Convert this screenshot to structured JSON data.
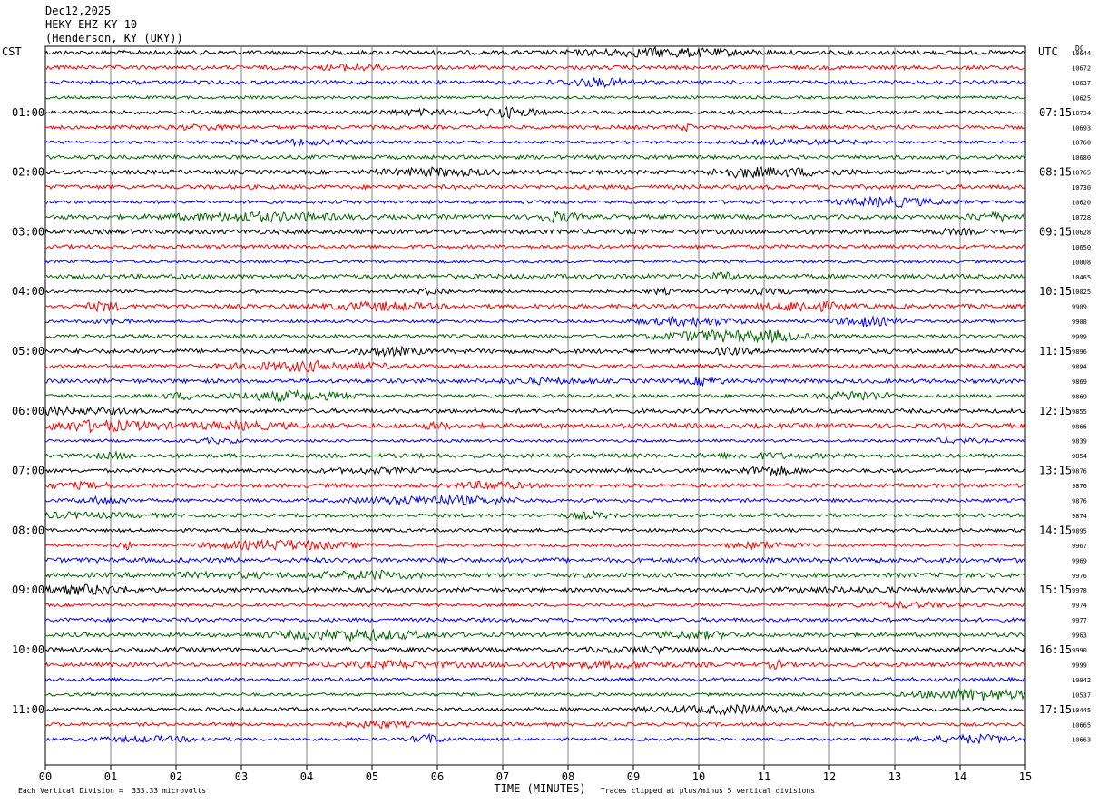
{
  "header": {
    "date": "Dec12,2025",
    "station": "HEKY EHZ KY 10",
    "location": "(Henderson, KY (UKY))"
  },
  "labels": {
    "left_zone": "CST",
    "right_zone": "UTC",
    "dc": "DC"
  },
  "footer": {
    "vertical_division": "Each Vertical Division =  333.33 microvolts",
    "clipping_note": "Traces clipped at plus/minus 5 vertical divisions"
  },
  "colors": {
    "trace_cycle": [
      "#000000",
      "#ff0000",
      "#0000ff",
      "#006400"
    ],
    "grid": "#808080"
  },
  "chart_data": {
    "type": "line",
    "title": "",
    "xlabel": "TIME (MINUTES)",
    "xlim": [
      0,
      15
    ],
    "x_ticks": [
      "00",
      "01",
      "02",
      "03",
      "04",
      "05",
      "06",
      "07",
      "08",
      "09",
      "10",
      "11",
      "12",
      "13",
      "14",
      "15"
    ],
    "rows_per_hour": 4,
    "cst_hours": [
      "01:00",
      "02:00",
      "03:00",
      "04:00",
      "05:00",
      "06:00",
      "07:00",
      "08:00",
      "09:00",
      "10:00",
      "11:00"
    ],
    "utc_hours": [
      "07:15",
      "08:15",
      "09:15",
      "10:15",
      "11:15",
      "12:15",
      "13:15",
      "14:15",
      "15:15",
      "16:15",
      "17:15"
    ],
    "dc_values": [
      "10644",
      "10672",
      "10637",
      "10625",
      "10734",
      "10693",
      "10760",
      "10680",
      "10765",
      "10730",
      "10620",
      "10728",
      "10628",
      "10650",
      "10008",
      "10465",
      "10025",
      "9909",
      "9908",
      "9909",
      "9896",
      "9894",
      "9869",
      "9869",
      "9855",
      "9866",
      "9839",
      "9854",
      "9876",
      "9876",
      "9876",
      "9874",
      "9895",
      "9967",
      "9969",
      "9976",
      "9978",
      "9974",
      "9977",
      "9963",
      "9990",
      "9999",
      "10042",
      "10537",
      "10445",
      "10665",
      "10663"
    ]
  }
}
